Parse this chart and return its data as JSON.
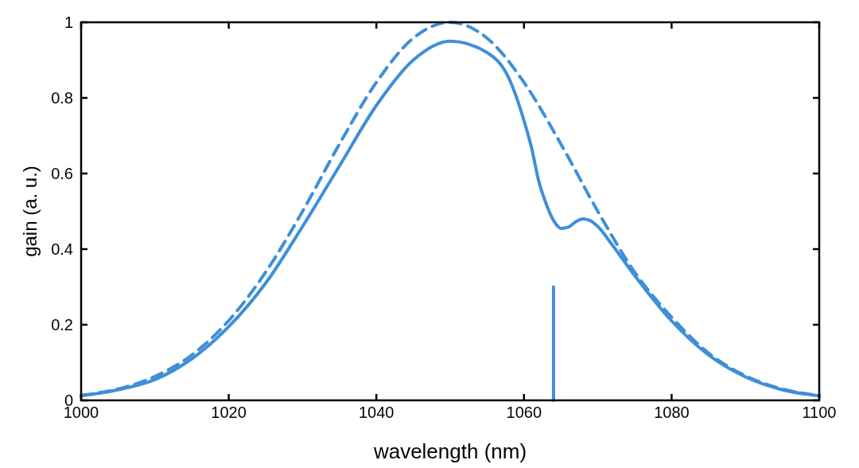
{
  "chart_data": {
    "type": "line",
    "xlabel": "wavelength (nm)",
    "ylabel": "gain (a. u.)",
    "xlim": [
      1000,
      1100
    ],
    "ylim": [
      0,
      1
    ],
    "xticks": [
      1000,
      1020,
      1040,
      1060,
      1080,
      1100
    ],
    "yticks": [
      0,
      0.2,
      0.4,
      0.6,
      0.8,
      1
    ],
    "grid": false,
    "marker": "none",
    "series": [
      {
        "color": "#3f8fd8",
        "line_style": "dashed",
        "x": [
          1000,
          1005,
          1010,
          1015,
          1020,
          1025,
          1030,
          1035,
          1040,
          1045,
          1050,
          1055,
          1060,
          1065,
          1070,
          1075,
          1080,
          1085,
          1090,
          1095,
          1100
        ],
        "values": [
          0.013,
          0.03,
          0.063,
          0.12,
          0.211,
          0.339,
          0.5,
          0.678,
          0.841,
          0.958,
          1,
          0.958,
          0.841,
          0.678,
          0.5,
          0.339,
          0.22,
          0.125,
          0.065,
          0.03,
          0.013
        ]
      },
      {
        "color": "#3f8fd8",
        "line_style": "solid",
        "x": [
          1000,
          1005,
          1010,
          1015,
          1020,
          1025,
          1030,
          1035,
          1040,
          1045,
          1050,
          1055,
          1058,
          1060,
          1061,
          1062,
          1063,
          1064,
          1065,
          1066,
          1067,
          1068,
          1069,
          1070,
          1072,
          1075,
          1080,
          1085,
          1090,
          1095,
          1100
        ],
        "values": [
          0.012,
          0.028,
          0.055,
          0.11,
          0.195,
          0.31,
          0.46,
          0.62,
          0.78,
          0.9,
          0.95,
          0.92,
          0.85,
          0.74,
          0.67,
          0.58,
          0.52,
          0.476,
          0.455,
          0.458,
          0.472,
          0.48,
          0.475,
          0.46,
          0.41,
          0.33,
          0.21,
          0.12,
          0.062,
          0.028,
          0.012
        ]
      },
      {
        "color": "#3f8fd8",
        "line_style": "solid",
        "x": [
          1064,
          1064
        ],
        "values": [
          0,
          0.3
        ]
      }
    ]
  }
}
